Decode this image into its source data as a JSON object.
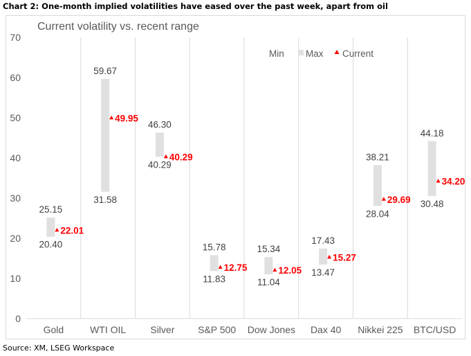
{
  "header": {
    "title": "Chart 2: One-month implied volatilities have eased over the past week, apart from oil",
    "source": "Source: XM, LSEG Workspace"
  },
  "colors": {
    "range_bar": "#e0e0e0",
    "current_marker": "#ff0000",
    "gridline": "#d9d9d9",
    "text": "#595959"
  },
  "chart_data": {
    "type": "bar",
    "title": "Current volatility vs. recent range",
    "categories": [
      "Gold",
      "WTI OIL",
      "Silver",
      "S&P 500",
      "Dow Jones",
      "Dax 40",
      "Nikkei 225",
      "BTC/USD"
    ],
    "series": [
      {
        "name": "Min",
        "values": [
          20.4,
          31.58,
          40.29,
          11.83,
          11.04,
          13.47,
          28.04,
          30.48
        ]
      },
      {
        "name": "Max",
        "values": [
          25.15,
          59.67,
          46.3,
          15.78,
          15.34,
          17.43,
          38.21,
          44.18
        ]
      },
      {
        "name": "Current",
        "values": [
          22.01,
          49.95,
          40.29,
          12.75,
          12.05,
          15.27,
          29.69,
          34.2
        ]
      }
    ],
    "min_labels": [
      "20.40",
      "31.58",
      "40.29",
      "11.83",
      "11.04",
      "13.47",
      "28.04",
      "30.48"
    ],
    "max_labels": [
      "25.15",
      "59.67",
      "46.30",
      "15.78",
      "15.34",
      "17.43",
      "38.21",
      "44.18"
    ],
    "current_labels": [
      "22.01",
      "49.95",
      "40.29",
      "12.75",
      "12.05",
      "15.27",
      "29.69",
      "34.20"
    ],
    "yticks": [
      "0",
      "10",
      "20",
      "30",
      "40",
      "50",
      "60",
      "70"
    ],
    "ylim": [
      0,
      70
    ],
    "xlabel": "",
    "ylabel": "",
    "grid": "vertical separators between categories",
    "legend": {
      "position": "top-right",
      "entries": [
        "Min",
        "Max",
        "Current"
      ]
    }
  }
}
